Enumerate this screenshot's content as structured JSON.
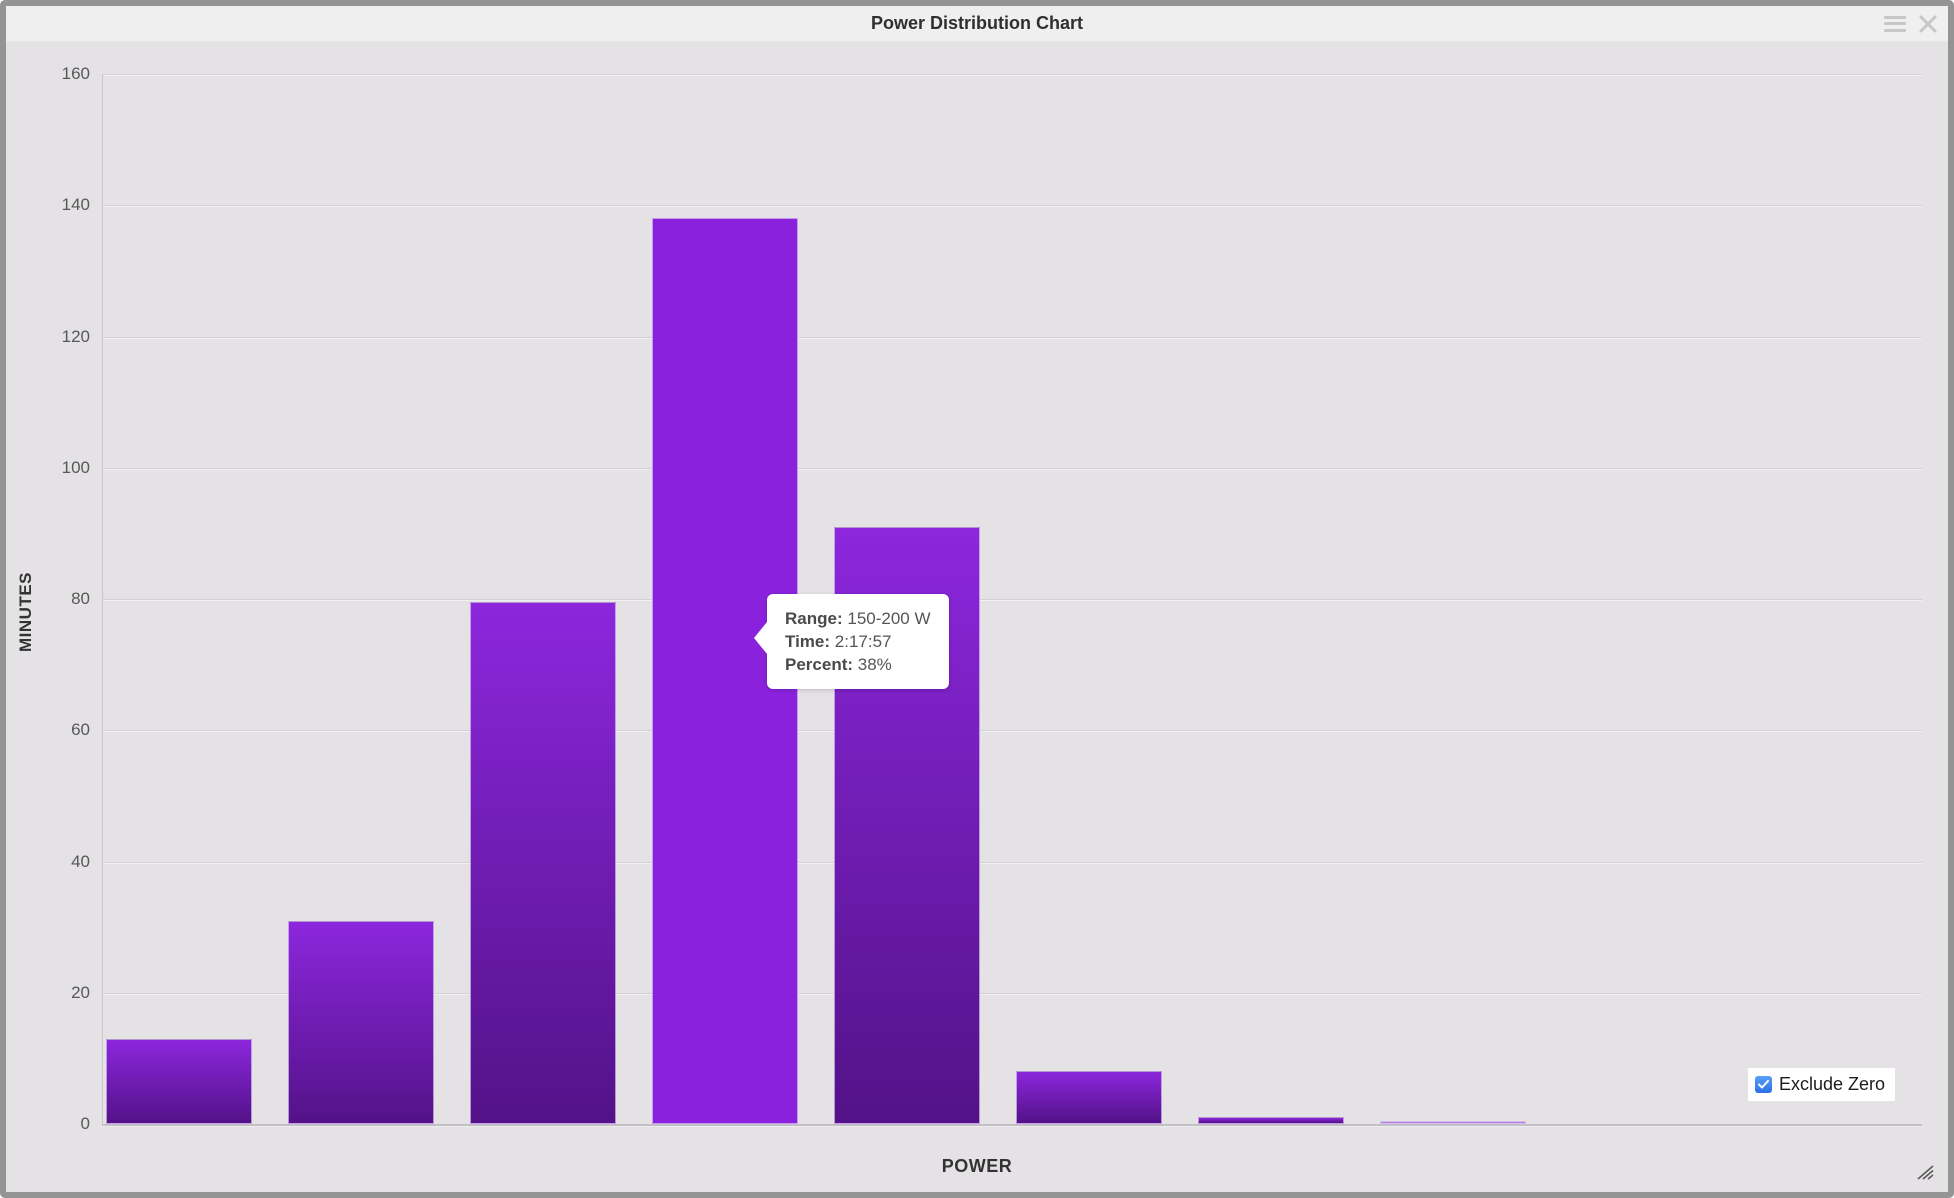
{
  "window": {
    "title": "Power Distribution Chart"
  },
  "chart_data": {
    "type": "bar",
    "title": "Power Distribution Chart",
    "xlabel": "POWER",
    "ylabel": "MINUTES",
    "ylim": [
      0,
      160
    ],
    "yticks": [
      0,
      20,
      40,
      60,
      80,
      100,
      120,
      140,
      160
    ],
    "grid": true,
    "values": [
      13,
      31,
      79.5,
      138,
      91,
      8,
      1,
      0.5
    ],
    "highlighted_index": 3,
    "highlighted_bar": {
      "range": "150-200 W",
      "time": "2:17:57",
      "percent": "38%"
    },
    "bar_color_top": "#8c27dd",
    "bar_color_bottom": "#531288",
    "highlight_color": "#8a22dd",
    "faint_bar_color_top": "#c9a4ec",
    "faint_bar_color_bottom": "#9e5fd3",
    "background_color": "#e4e2e5"
  },
  "tooltip": {
    "rows": [
      {
        "label": "Range:",
        "value": "150-200 W"
      },
      {
        "label": "Time:",
        "value": "2:17:57"
      },
      {
        "label": "Percent:",
        "value": "38%"
      }
    ]
  },
  "controls": {
    "exclude_zero": {
      "label": "Exclude Zero",
      "checked": true
    }
  }
}
